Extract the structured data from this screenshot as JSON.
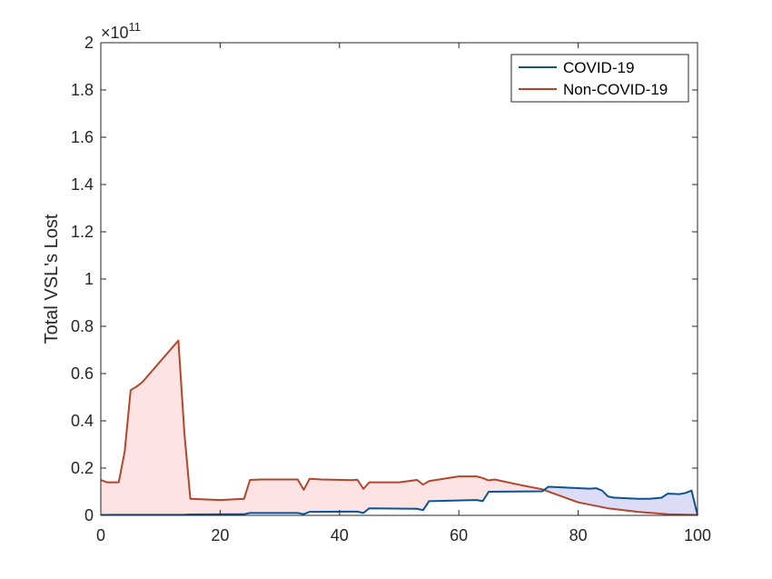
{
  "chart_data": {
    "type": "area",
    "xlabel": "",
    "ylabel": "Total VSL's Lost",
    "y_exponent_label": {
      "base": "×10",
      "exponent": "11"
    },
    "xlim": [
      0,
      100
    ],
    "ylim": [
      0,
      2
    ],
    "x_ticks": [
      0,
      20,
      40,
      60,
      80,
      100
    ],
    "y_ticks": [
      0,
      0.2,
      0.4,
      0.6,
      0.8,
      1,
      1.2,
      1.4,
      1.6,
      1.8,
      2
    ],
    "y_tick_labels": [
      "0",
      "0.2",
      "0.4",
      "0.6",
      "0.8",
      "1",
      "1.2",
      "1.4",
      "1.6",
      "1.8",
      "2"
    ],
    "x_tick_labels": [
      "0",
      "20",
      "40",
      "60",
      "80",
      "100"
    ],
    "grid": false,
    "legend": {
      "placement": "top-right"
    },
    "colors": {
      "covid_line": "#0b5394",
      "noncovid_line": "#b5452a",
      "covid_fill": "#dcdcf7",
      "noncovid_fill": "#fde3e3"
    },
    "series": [
      {
        "name": "COVID-19",
        "x": [
          0,
          14,
          15,
          24,
          25,
          33,
          34,
          35,
          43,
          44,
          45,
          53,
          54,
          55,
          63,
          64,
          65,
          74,
          75,
          82,
          83,
          84,
          85,
          86,
          90,
          92,
          94,
          95,
          97,
          98,
          99,
          100
        ],
        "y": [
          0.002,
          0.003,
          0.004,
          0.005,
          0.01,
          0.01,
          0.005,
          0.015,
          0.016,
          0.01,
          0.03,
          0.028,
          0.022,
          0.06,
          0.065,
          0.06,
          0.1,
          0.102,
          0.121,
          0.113,
          0.115,
          0.105,
          0.08,
          0.075,
          0.07,
          0.07,
          0.075,
          0.092,
          0.09,
          0.095,
          0.105,
          0.002
        ]
      },
      {
        "name": "Non-COVID-19",
        "x": [
          0,
          1,
          3,
          4,
          5,
          6,
          7,
          13,
          14,
          15,
          20,
          24,
          25,
          27,
          33,
          34,
          35,
          37,
          42,
          43,
          44,
          45,
          50,
          53,
          54,
          55,
          60,
          63,
          64,
          65,
          66,
          70,
          74,
          80,
          85,
          90,
          95,
          100
        ],
        "y": [
          0.15,
          0.14,
          0.14,
          0.27,
          0.53,
          0.545,
          0.565,
          0.74,
          0.35,
          0.07,
          0.065,
          0.07,
          0.15,
          0.152,
          0.152,
          0.108,
          0.155,
          0.152,
          0.149,
          0.151,
          0.112,
          0.14,
          0.14,
          0.15,
          0.13,
          0.145,
          0.165,
          0.165,
          0.158,
          0.148,
          0.152,
          0.13,
          0.11,
          0.055,
          0.03,
          0.015,
          0.005,
          0.002
        ]
      }
    ]
  }
}
